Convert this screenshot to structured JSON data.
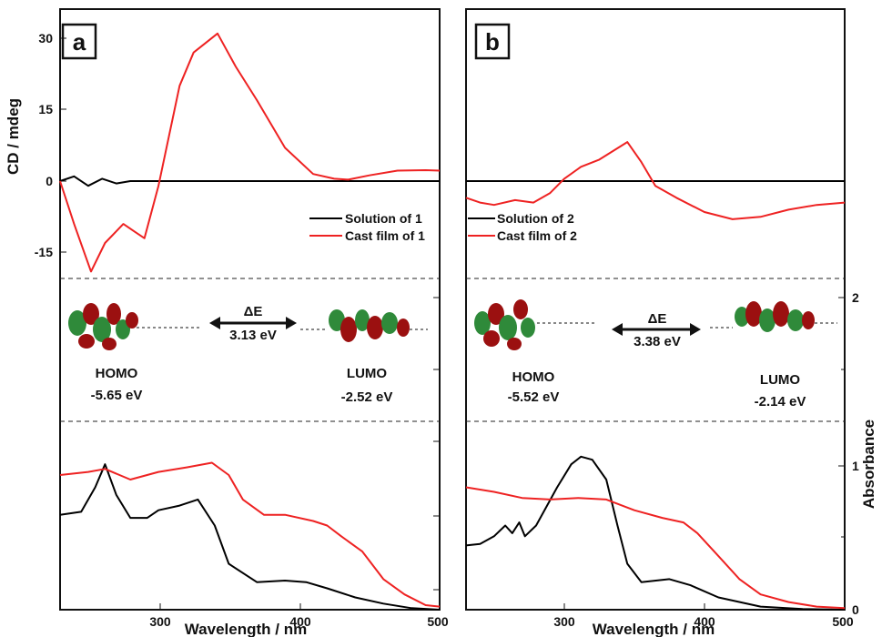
{
  "colors": {
    "solution": "#000000",
    "cast_film": "#ee2222",
    "orbital_red": "#9b1010",
    "orbital_green": "#2f8a3a"
  },
  "icons": [
    "homo-orbital-icon",
    "lumo-orbital-icon",
    "double-arrow-icon"
  ],
  "left_axis": {
    "label": "CD / mdeg",
    "ticks": [
      "30",
      "15",
      "0",
      "-15"
    ]
  },
  "right_axis": {
    "label": "Absorbance",
    "ticks": [
      "2",
      "1",
      "0"
    ]
  },
  "panels": [
    {
      "letter": "a",
      "xlabel": "Wavelength / nm",
      "xticks": [
        "300",
        "400",
        "500"
      ],
      "legend": [
        "Solution of 1",
        "Cast film of 1"
      ],
      "orbitals": {
        "delta_label": "ΔE",
        "delta_value": "3.13 eV",
        "homo_label": "HOMO",
        "homo_energy": "-5.65 eV",
        "lumo_label": "LUMO",
        "lumo_energy": "-2.52 eV"
      }
    },
    {
      "letter": "b",
      "xlabel": "Wavelength / nm",
      "xticks": [
        "300",
        "400",
        "500"
      ],
      "legend": [
        "Solution of 2",
        "Cast film of 2"
      ],
      "orbitals": {
        "delta_label": "ΔE",
        "delta_value": "3.38 eV",
        "homo_label": "HOMO",
        "homo_energy": "-5.52 eV",
        "lumo_label": "LUMO",
        "lumo_energy": "-2.14 eV"
      }
    }
  ],
  "chart_data": [
    {
      "panel": "a",
      "type": "line",
      "region": "CD",
      "xlim": [
        230,
        500
      ],
      "ylim": [
        -20,
        32
      ],
      "series": [
        {
          "name": "Solution of 1",
          "x": [
            230,
            240,
            250,
            260,
            270,
            280,
            300,
            350,
            400,
            450,
            500
          ],
          "y": [
            0,
            1,
            -1,
            0.5,
            -0.5,
            0,
            0,
            0,
            0,
            0,
            0
          ]
        },
        {
          "name": "Cast film of 1",
          "x": [
            230,
            240,
            252,
            262,
            275,
            285,
            290,
            300,
            315,
            325,
            342,
            355,
            370,
            390,
            410,
            425,
            435,
            450,
            470,
            490,
            500
          ],
          "y": [
            0,
            -9,
            -19,
            -13,
            -9,
            -11,
            -12,
            -1,
            20,
            27,
            31,
            24,
            17,
            7,
            1.5,
            0.5,
            0.3,
            1.2,
            2.2,
            2.3,
            2.2
          ]
        }
      ]
    },
    {
      "panel": "a",
      "type": "line",
      "region": "Absorbance",
      "xlim": [
        230,
        500
      ],
      "ylim": [
        0,
        1.1
      ],
      "series": [
        {
          "name": "Solution of 1",
          "x": [
            230,
            245,
            255,
            262,
            270,
            280,
            292,
            300,
            315,
            328,
            340,
            350,
            370,
            390,
            405,
            420,
            440,
            460,
            480,
            500
          ],
          "y": [
            0.62,
            0.64,
            0.8,
            0.95,
            0.75,
            0.6,
            0.6,
            0.65,
            0.68,
            0.72,
            0.55,
            0.3,
            0.18,
            0.19,
            0.18,
            0.14,
            0.08,
            0.04,
            0.01,
            0
          ]
        },
        {
          "name": "Cast film of 1",
          "x": [
            230,
            250,
            262,
            280,
            300,
            320,
            338,
            350,
            360,
            375,
            390,
            410,
            420,
            430,
            445,
            460,
            475,
            490,
            500
          ],
          "y": [
            0.88,
            0.9,
            0.92,
            0.85,
            0.9,
            0.93,
            0.96,
            0.88,
            0.72,
            0.62,
            0.62,
            0.58,
            0.55,
            0.48,
            0.38,
            0.2,
            0.1,
            0.03,
            0.02
          ]
        }
      ]
    },
    {
      "panel": "b",
      "type": "line",
      "region": "CD",
      "xlim": [
        230,
        500
      ],
      "ylim": [
        -20,
        32
      ],
      "series": [
        {
          "name": "Solution of 2",
          "x": [
            230,
            300,
            400,
            500
          ],
          "y": [
            0,
            0,
            0,
            0
          ]
        },
        {
          "name": "Cast film of 2",
          "x": [
            230,
            240,
            250,
            265,
            278,
            290,
            300,
            312,
            325,
            345,
            355,
            365,
            380,
            400,
            420,
            440,
            460,
            480,
            500
          ],
          "y": [
            -3.5,
            -4.5,
            -5,
            -4,
            -4.5,
            -2.5,
            0.5,
            3,
            4.5,
            8.2,
            4,
            -1,
            -3.5,
            -6.5,
            -8,
            -7.5,
            -6,
            -5,
            -4.5
          ]
        }
      ]
    },
    {
      "panel": "b",
      "type": "line",
      "region": "Absorbance",
      "xlim": [
        230,
        500
      ],
      "ylim": [
        0,
        1.1
      ],
      "series": [
        {
          "name": "Solution of 2",
          "x": [
            230,
            240,
            250,
            258,
            263,
            268,
            272,
            280,
            295,
            305,
            312,
            320,
            330,
            338,
            345,
            355,
            375,
            390,
            410,
            440,
            470,
            500
          ],
          "y": [
            0.42,
            0.43,
            0.48,
            0.55,
            0.5,
            0.57,
            0.48,
            0.55,
            0.8,
            0.95,
            1.0,
            0.98,
            0.85,
            0.55,
            0.3,
            0.18,
            0.2,
            0.16,
            0.08,
            0.02,
            0.005,
            0
          ]
        },
        {
          "name": "Cast film of 2",
          "x": [
            230,
            250,
            270,
            290,
            310,
            330,
            350,
            370,
            385,
            395,
            410,
            425,
            440,
            460,
            480,
            500
          ],
          "y": [
            0.8,
            0.77,
            0.73,
            0.72,
            0.73,
            0.72,
            0.65,
            0.6,
            0.57,
            0.5,
            0.35,
            0.2,
            0.1,
            0.05,
            0.02,
            0.01
          ]
        }
      ]
    }
  ]
}
